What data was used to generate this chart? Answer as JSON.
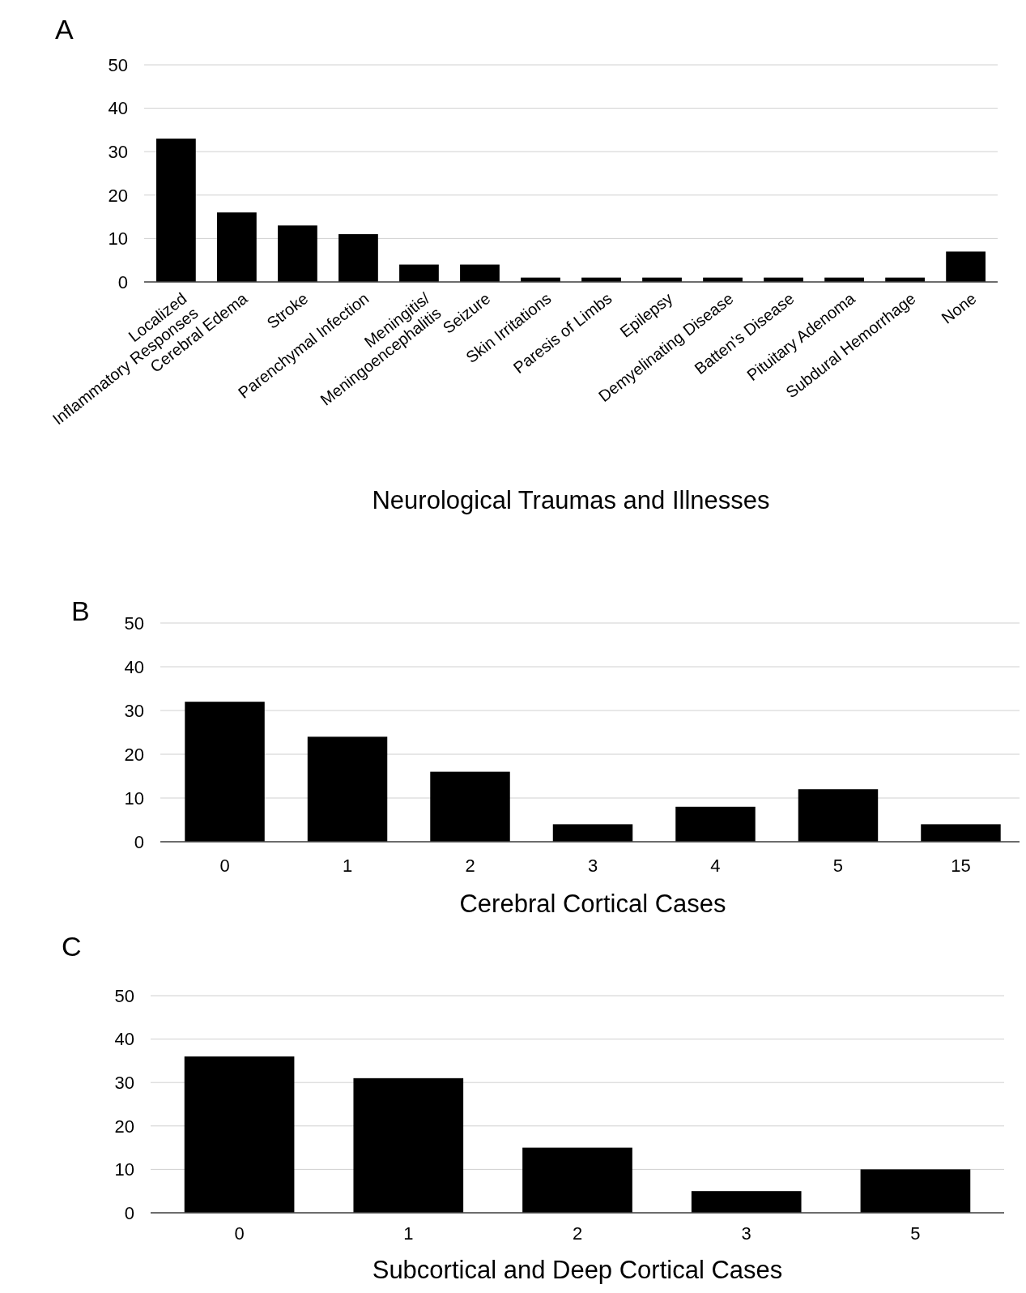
{
  "chart_data": [
    {
      "type": "bar",
      "title": "A",
      "xlabel": "Neurological Traumas and Illnesses",
      "categories": [
        "Localized\nInflammatory Responses",
        "Cerebral Edema",
        "Stroke",
        "Parenchymal Infection",
        "Meningitis/\nMeningoencephalitis",
        "Seizure",
        "Skin Irritations",
        "Paresis of Limbs",
        "Epilepsy",
        "Demyelinating Disease",
        "Batten's Disease",
        "Pituitary Adenoma",
        "Subdural Hemorrhage",
        "None"
      ],
      "values": [
        33,
        16,
        13,
        11,
        4,
        4,
        1,
        1,
        1,
        1,
        1,
        1,
        1,
        7
      ],
      "color": "#000000",
      "ylim": [
        0,
        50
      ],
      "yticks": [
        0,
        10,
        20,
        30,
        40,
        50
      ],
      "grid": "y"
    },
    {
      "type": "bar",
      "title": "B",
      "xlabel": "Cerebral Cortical Cases",
      "categories": [
        "0",
        "1",
        "2",
        "3",
        "4",
        "5",
        "15"
      ],
      "values": [
        32,
        24,
        16,
        4,
        8,
        12,
        4
      ],
      "color": "#000000",
      "ylim": [
        0,
        50
      ],
      "yticks": [
        0,
        10,
        20,
        30,
        40,
        50
      ],
      "grid": "y"
    },
    {
      "type": "bar",
      "title": "C",
      "xlabel": "Subcortical and Deep Cortical Cases",
      "categories": [
        "0",
        "1",
        "2",
        "3",
        "5"
      ],
      "values": [
        36,
        31,
        15,
        5,
        10
      ],
      "color": "#000000",
      "ylim": [
        0,
        50
      ],
      "yticks": [
        0,
        10,
        20,
        30,
        40,
        50
      ],
      "grid": "y"
    }
  ]
}
